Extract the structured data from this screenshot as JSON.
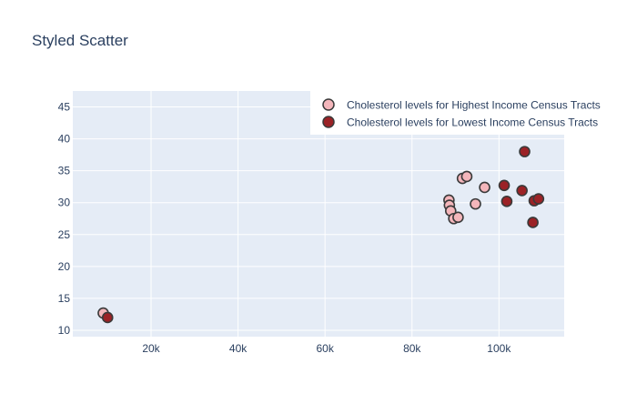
{
  "chart_data": {
    "type": "scatter",
    "title": "Styled Scatter",
    "xlabel": "",
    "ylabel": "",
    "xlim": [
      2000,
      115000
    ],
    "ylim": [
      9,
      47.5
    ],
    "x_ticks": [
      20000,
      40000,
      60000,
      80000,
      100000
    ],
    "x_tick_labels": [
      "20k",
      "40k",
      "60k",
      "80k",
      "100k"
    ],
    "y_ticks": [
      10,
      15,
      20,
      25,
      30,
      35,
      40,
      45
    ],
    "y_tick_labels": [
      "10",
      "15",
      "20",
      "25",
      "30",
      "35",
      "40",
      "45"
    ],
    "grid": true,
    "legend_placement": "top-right",
    "series": [
      {
        "name": "Cholesterol levels for Highest Income Census Tracts",
        "color": "#f4b6bb",
        "points": [
          {
            "x": 9000,
            "y": 12.7
          },
          {
            "x": 88500,
            "y": 30.4
          },
          {
            "x": 88600,
            "y": 29.6
          },
          {
            "x": 88900,
            "y": 28.7
          },
          {
            "x": 89600,
            "y": 27.5
          },
          {
            "x": 90600,
            "y": 27.7
          },
          {
            "x": 91600,
            "y": 33.8
          },
          {
            "x": 92600,
            "y": 34.1
          },
          {
            "x": 94600,
            "y": 29.8
          },
          {
            "x": 96700,
            "y": 32.4
          }
        ]
      },
      {
        "name": "Cholesterol levels for Lowest Income Census Tracts",
        "color": "#9b2226",
        "points": [
          {
            "x": 10000,
            "y": 12.0
          },
          {
            "x": 101200,
            "y": 32.7
          },
          {
            "x": 101800,
            "y": 30.2
          },
          {
            "x": 105300,
            "y": 31.9
          },
          {
            "x": 105900,
            "y": 38.0
          },
          {
            "x": 107800,
            "y": 26.9
          },
          {
            "x": 108100,
            "y": 30.3
          },
          {
            "x": 109100,
            "y": 30.6
          }
        ]
      }
    ]
  }
}
